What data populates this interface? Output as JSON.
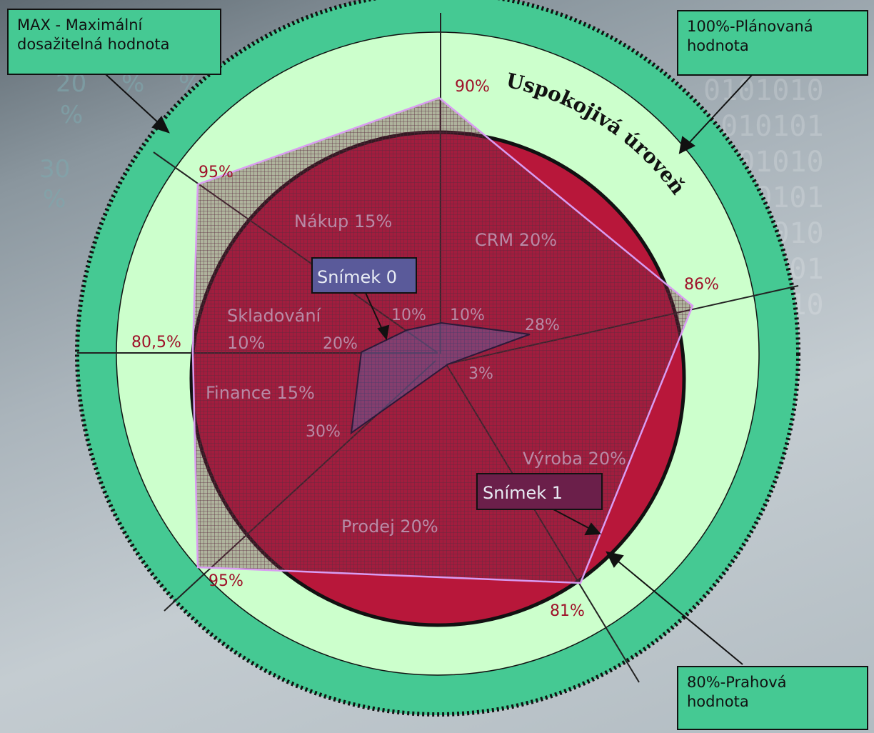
{
  "callouts": {
    "max": "MAX - Maximální\ndosažitelná hodnota",
    "plan": "100%-Plánovaná\nhodnota",
    "threshold": "80%-Prahová\nhodnota"
  },
  "ring_title": "Uspokojivá úroveň",
  "snapshot_labels": {
    "s0": "Snímek 0",
    "s1": "Snímek 1"
  },
  "segments": [
    {
      "name": "CRM 20%"
    },
    {
      "name": "Výroba 20%"
    },
    {
      "name": "Prodej 20%"
    },
    {
      "name": "Finance 15%"
    },
    {
      "name": "Skladování\n10%"
    },
    {
      "name": "Nákup 15%"
    }
  ],
  "snapshot1_values": [
    "90%",
    "86%",
    "81%",
    "95%",
    "80,5%",
    "95%"
  ],
  "snapshot0_values": [
    "10%",
    "28%",
    "3%",
    "30%",
    "20%",
    "10%"
  ],
  "background_fragments": [
    "20",
    "%",
    "%",
    "%",
    "30",
    "%"
  ],
  "colors": {
    "outer_ring": "#45c993",
    "satisfactory_zone": "#ccffcc",
    "core": "#b8173a",
    "snapshot1_outline": "#d99cf2",
    "callout_fill": "#45c993"
  }
}
